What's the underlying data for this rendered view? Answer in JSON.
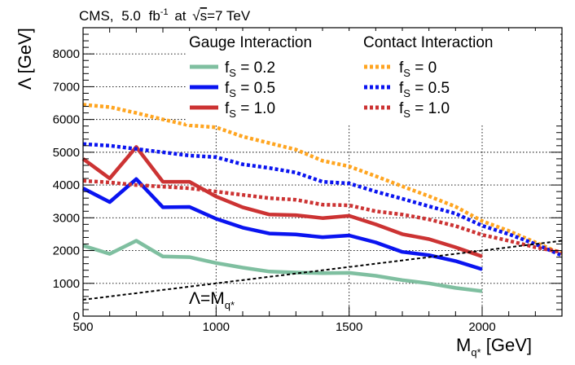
{
  "chart_data": {
    "type": "line",
    "header": {
      "experiment": "CMS,",
      "lumi_value": "5.0",
      "lumi_unit": "fb",
      "lumi_exp": "-1",
      "at": "at",
      "sqrt_sign": "√",
      "energy_var": "s",
      "energy_value": "=7 TeV"
    },
    "ylabel": "Λ [GeV]",
    "xlabel_main": "M",
    "xlabel_sub": "q*",
    "xlabel_unit": " [GeV]",
    "xlim": [
      500,
      2300
    ],
    "ylim": [
      0,
      8800
    ],
    "xticks": [
      500,
      1000,
      1500,
      2000
    ],
    "yticks": [
      0,
      1000,
      2000,
      3000,
      4000,
      5000,
      6000,
      7000,
      8000
    ],
    "grid": true,
    "legend": {
      "gauge_header": "Gauge Interaction",
      "contact_header": "Contact Interaction",
      "f_letter": "f",
      "f_sub": "S"
    },
    "annotation": {
      "lambda": "Λ",
      "equals": "=M",
      "sub": "q*"
    },
    "series": [
      {
        "name": "gauge-fs-0.2",
        "group": "Gauge Interaction",
        "label": " = 0.2",
        "color": "#7fbfa0",
        "dash": "solid",
        "x": [
          500,
          600,
          700,
          800,
          900,
          1000,
          1100,
          1200,
          1300,
          1400,
          1500,
          1600,
          1700,
          1800,
          1900,
          2000
        ],
        "y": [
          2150,
          1900,
          2300,
          1820,
          1800,
          1620,
          1480,
          1360,
          1330,
          1310,
          1320,
          1230,
          1100,
          1000,
          860,
          760
        ]
      },
      {
        "name": "gauge-fs-0.5",
        "group": "Gauge Interaction",
        "label": " = 0.5",
        "color": "#0a14f0",
        "dash": "solid",
        "x": [
          500,
          600,
          700,
          800,
          900,
          1000,
          1100,
          1200,
          1300,
          1400,
          1500,
          1600,
          1700,
          1800,
          1900,
          2000
        ],
        "y": [
          3900,
          3480,
          4180,
          3320,
          3330,
          2970,
          2700,
          2520,
          2490,
          2410,
          2460,
          2250,
          1960,
          1860,
          1680,
          1430
        ]
      },
      {
        "name": "gauge-fs-1.0",
        "group": "Gauge Interaction",
        "label": " = 1.0",
        "color": "#cc3333",
        "dash": "solid",
        "x": [
          500,
          600,
          700,
          800,
          900,
          1000,
          1100,
          1200,
          1300,
          1400,
          1500,
          1600,
          1700,
          1800,
          1900,
          2000
        ],
        "y": [
          4800,
          4200,
          5160,
          4100,
          4100,
          3650,
          3320,
          3100,
          3080,
          2990,
          3060,
          2800,
          2500,
          2350,
          2100,
          1820
        ]
      },
      {
        "name": "contact-fs-0",
        "group": "Contact Interaction",
        "label": " = 0",
        "color": "#ffa520",
        "dash": "dotted",
        "x": [
          500,
          600,
          700,
          800,
          900,
          1000,
          1100,
          1200,
          1300,
          1400,
          1500,
          1600,
          1700,
          1800,
          1900,
          2000,
          2100,
          2200,
          2300
        ],
        "y": [
          6450,
          6380,
          6200,
          6000,
          5820,
          5760,
          5480,
          5280,
          5080,
          4740,
          4570,
          4270,
          3960,
          3660,
          3340,
          2900,
          2600,
          2250,
          1900
        ]
      },
      {
        "name": "contact-fs-0.5",
        "group": "Contact Interaction",
        "label": " = 0.5",
        "color": "#0a14f0",
        "dash": "dotted",
        "x": [
          500,
          600,
          700,
          800,
          900,
          1000,
          1100,
          1200,
          1300,
          1400,
          1500,
          1600,
          1700,
          1800,
          1900,
          2000,
          2100,
          2200,
          2300
        ],
        "y": [
          5250,
          5200,
          5100,
          5000,
          4900,
          4850,
          4630,
          4520,
          4380,
          4100,
          4050,
          3800,
          3580,
          3350,
          3130,
          2760,
          2500,
          2200,
          1850
        ]
      },
      {
        "name": "contact-fs-1.0",
        "group": "Contact Interaction",
        "label": " = 1.0",
        "color": "#cc3333",
        "dash": "dotted",
        "x": [
          500,
          600,
          700,
          800,
          900,
          1000,
          1100,
          1200,
          1300,
          1400,
          1500,
          1600,
          1700,
          1800,
          1900,
          2000,
          2100,
          2200,
          2300
        ],
        "y": [
          4130,
          4080,
          4000,
          3950,
          3900,
          3800,
          3700,
          3600,
          3550,
          3400,
          3380,
          3200,
          3100,
          2950,
          2750,
          2480,
          2300,
          2100,
          1950
        ]
      },
      {
        "name": "lambda-equals-mq",
        "label": "Λ=M",
        "color": "#000000",
        "dash": "dashed",
        "x": [
          500,
          2300
        ],
        "y": [
          500,
          2300
        ]
      }
    ]
  }
}
